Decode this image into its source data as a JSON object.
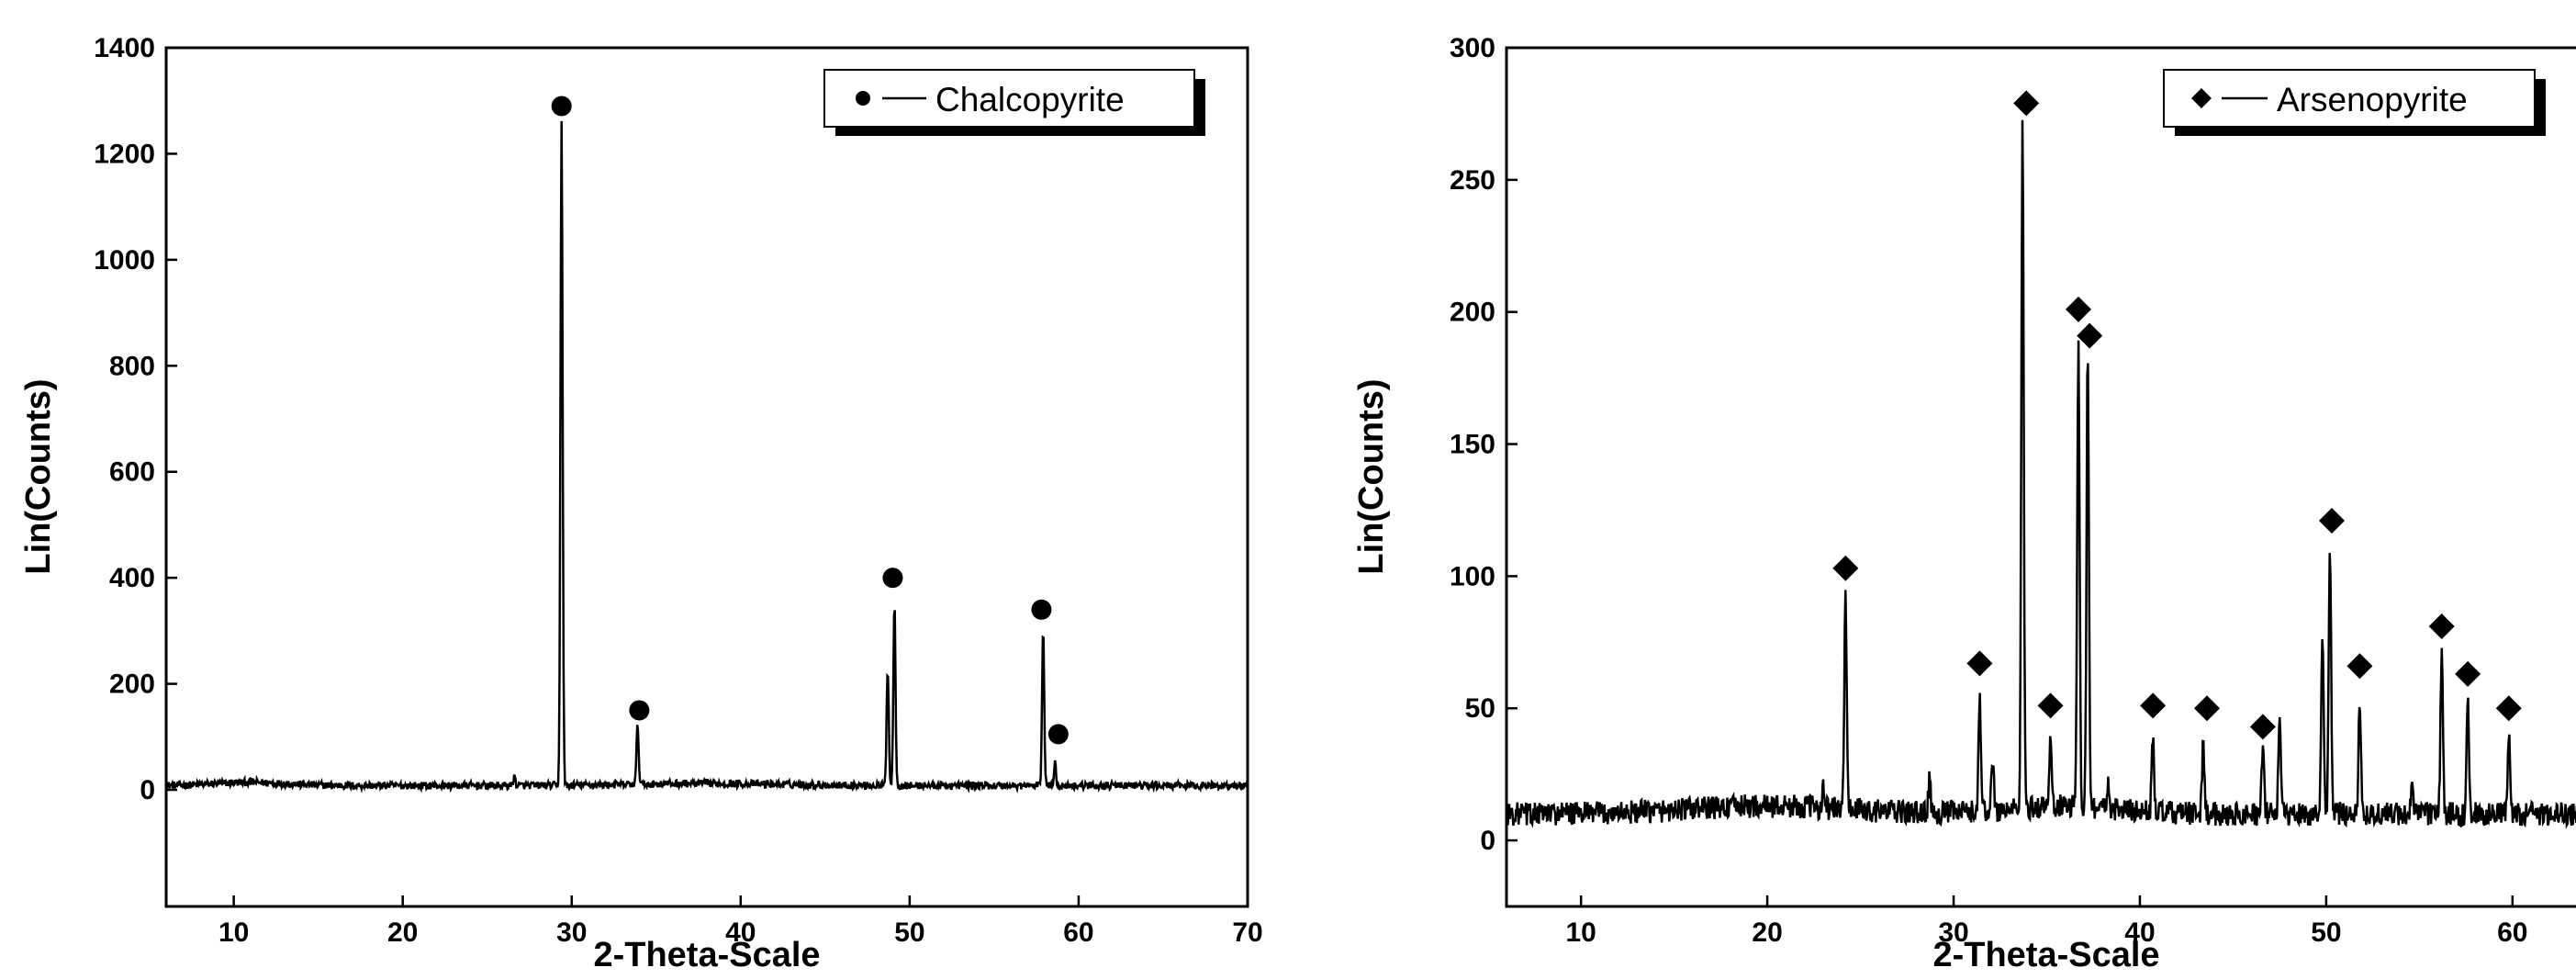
{
  "chart_data": [
    {
      "type": "line",
      "xlabel": "2-Theta-Scale",
      "ylabel": "Lin(Counts)",
      "xlim": [
        6,
        70
      ],
      "ylim": [
        -220,
        1400
      ],
      "xticks": [
        10,
        20,
        30,
        40,
        50,
        60,
        70
      ],
      "yticks": [
        0,
        200,
        400,
        600,
        800,
        1000,
        1200,
        1400
      ],
      "grid": false,
      "legend_position": "top-right",
      "marker": "circle",
      "series": [
        {
          "name": "Chalcopyrite",
          "baseline": 8,
          "peaks": [
            {
              "x": 26.6,
              "y": 25
            },
            {
              "x": 29.4,
              "y": 1260
            },
            {
              "x": 33.9,
              "y": 120
            },
            {
              "x": 48.7,
              "y": 230
            },
            {
              "x": 49.1,
              "y": 350
            },
            {
              "x": 57.9,
              "y": 300
            },
            {
              "x": 58.6,
              "y": 50
            }
          ],
          "markers": [
            {
              "x": 29.4,
              "y": 1290
            },
            {
              "x": 34.0,
              "y": 150
            },
            {
              "x": 49.0,
              "y": 400
            },
            {
              "x": 57.8,
              "y": 340
            },
            {
              "x": 58.8,
              "y": 105
            }
          ]
        }
      ]
    },
    {
      "type": "line",
      "xlabel": "2-Theta-Scale",
      "ylabel": "Lin(Counts)",
      "xlim": [
        6,
        64
      ],
      "ylim": [
        -25,
        300
      ],
      "xticks": [
        10,
        20,
        30,
        40,
        50,
        60
      ],
      "yticks": [
        0,
        50,
        100,
        150,
        200,
        250,
        300
      ],
      "grid": false,
      "legend_position": "top-right",
      "marker": "diamond",
      "series": [
        {
          "name": "Arsenopyrite",
          "baseline": 10,
          "peaks": [
            {
              "x": 23.0,
              "y": 18
            },
            {
              "x": 24.2,
              "y": 90
            },
            {
              "x": 28.7,
              "y": 22
            },
            {
              "x": 31.4,
              "y": 52
            },
            {
              "x": 32.1,
              "y": 30
            },
            {
              "x": 33.7,
              "y": 267
            },
            {
              "x": 35.2,
              "y": 35
            },
            {
              "x": 36.7,
              "y": 185
            },
            {
              "x": 37.2,
              "y": 182
            },
            {
              "x": 38.3,
              "y": 20
            },
            {
              "x": 40.7,
              "y": 38
            },
            {
              "x": 43.4,
              "y": 36
            },
            {
              "x": 46.6,
              "y": 35
            },
            {
              "x": 47.5,
              "y": 50
            },
            {
              "x": 49.8,
              "y": 80
            },
            {
              "x": 50.2,
              "y": 113
            },
            {
              "x": 51.8,
              "y": 55
            },
            {
              "x": 54.6,
              "y": 20
            },
            {
              "x": 56.2,
              "y": 72
            },
            {
              "x": 57.6,
              "y": 52
            },
            {
              "x": 59.8,
              "y": 40
            }
          ],
          "markers": [
            {
              "x": 24.2,
              "y": 103
            },
            {
              "x": 31.4,
              "y": 67
            },
            {
              "x": 33.9,
              "y": 279
            },
            {
              "x": 35.2,
              "y": 51
            },
            {
              "x": 36.7,
              "y": 201
            },
            {
              "x": 37.3,
              "y": 191
            },
            {
              "x": 40.7,
              "y": 51
            },
            {
              "x": 43.6,
              "y": 50
            },
            {
              "x": 46.6,
              "y": 43
            },
            {
              "x": 50.3,
              "y": 121
            },
            {
              "x": 51.8,
              "y": 66
            },
            {
              "x": 56.2,
              "y": 81
            },
            {
              "x": 57.6,
              "y": 63
            },
            {
              "x": 59.8,
              "y": 50
            }
          ]
        }
      ]
    }
  ]
}
